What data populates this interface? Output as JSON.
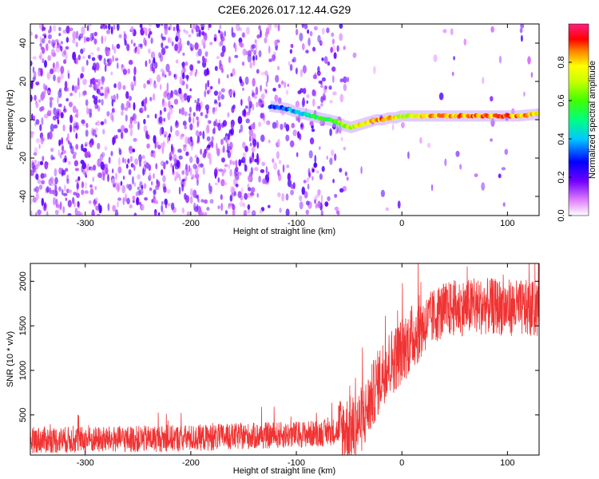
{
  "title": "C2E6.2026.017.12.44.G29",
  "chart_data": [
    {
      "type": "heatmap",
      "name": "spectrogram",
      "xlabel": "Height of straight line (km)",
      "ylabel": "Frequency (Hz)",
      "xlim": [
        -352,
        130
      ],
      "ylim": [
        -50,
        50
      ],
      "xticks": [
        -300,
        -200,
        -100,
        0,
        100
      ],
      "yticks": [
        -40,
        -20,
        0,
        20,
        40
      ],
      "colorbar": {
        "label": "Normalized spectral amplitude",
        "range": [
          0,
          1
        ],
        "ticks": [
          0.0,
          0.2,
          0.4,
          0.6,
          0.8
        ]
      },
      "signal_track": {
        "x": [
          -125,
          -110,
          -100,
          -92,
          -85,
          -78,
          -70,
          -62,
          -55,
          -48,
          -42,
          -36,
          -30,
          -24,
          -18,
          -12,
          -6,
          0,
          20,
          50,
          80,
          110,
          130
        ],
        "y": [
          7,
          6,
          4,
          3,
          2,
          1,
          0,
          -1,
          -3,
          -4,
          -3,
          -2,
          -1,
          0,
          0,
          1,
          1,
          2,
          2,
          2,
          2,
          2,
          3
        ],
        "amplitude": [
          0.3,
          0.35,
          0.4,
          0.45,
          0.5,
          0.55,
          0.55,
          0.6,
          0.65,
          0.7,
          0.75,
          0.8,
          0.85,
          0.85,
          0.85,
          0.8,
          0.75,
          0.7,
          0.8,
          0.85,
          0.85,
          0.85,
          0.75
        ]
      }
    },
    {
      "type": "line",
      "name": "snr",
      "xlabel": "Height of straight line (km)",
      "ylabel": "SNR (10 * v/v)",
      "xlim": [
        -352,
        130
      ],
      "ylim": [
        50,
        2200
      ],
      "xticks": [
        -300,
        -200,
        -100,
        0,
        100
      ],
      "yticks": [
        500,
        1000,
        1500,
        2000
      ],
      "color": "#f03333",
      "trend": {
        "x": [
          -352,
          -300,
          -200,
          -100,
          -70,
          -55,
          -45,
          -35,
          -25,
          -15,
          -5,
          5,
          15,
          25,
          35,
          50,
          80,
          110,
          130
        ],
        "y": [
          220,
          220,
          240,
          280,
          300,
          340,
          350,
          500,
          800,
          1050,
          1150,
          1300,
          1450,
          1550,
          1650,
          1700,
          1720,
          1700,
          1680
        ]
      }
    }
  ]
}
